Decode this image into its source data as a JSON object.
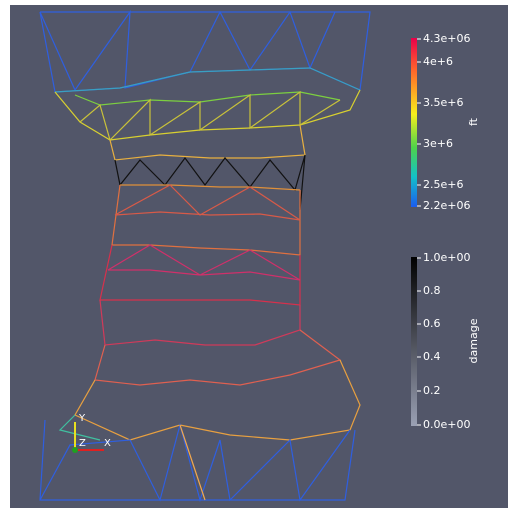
{
  "colorbars": {
    "ft": {
      "title": "ft",
      "labels": [
        "4.3e+06",
        "4e+6",
        "3.5e+6",
        "3e+6",
        "2.5e+6",
        "2.2e+06"
      ]
    },
    "damage": {
      "title": "damage",
      "labels": [
        "1.0e+00",
        "0.8",
        "0.6",
        "0.4",
        "0.2",
        "0.0e+00"
      ]
    }
  },
  "axes": {
    "y": "Y",
    "z": "Z",
    "x": "X"
  }
}
